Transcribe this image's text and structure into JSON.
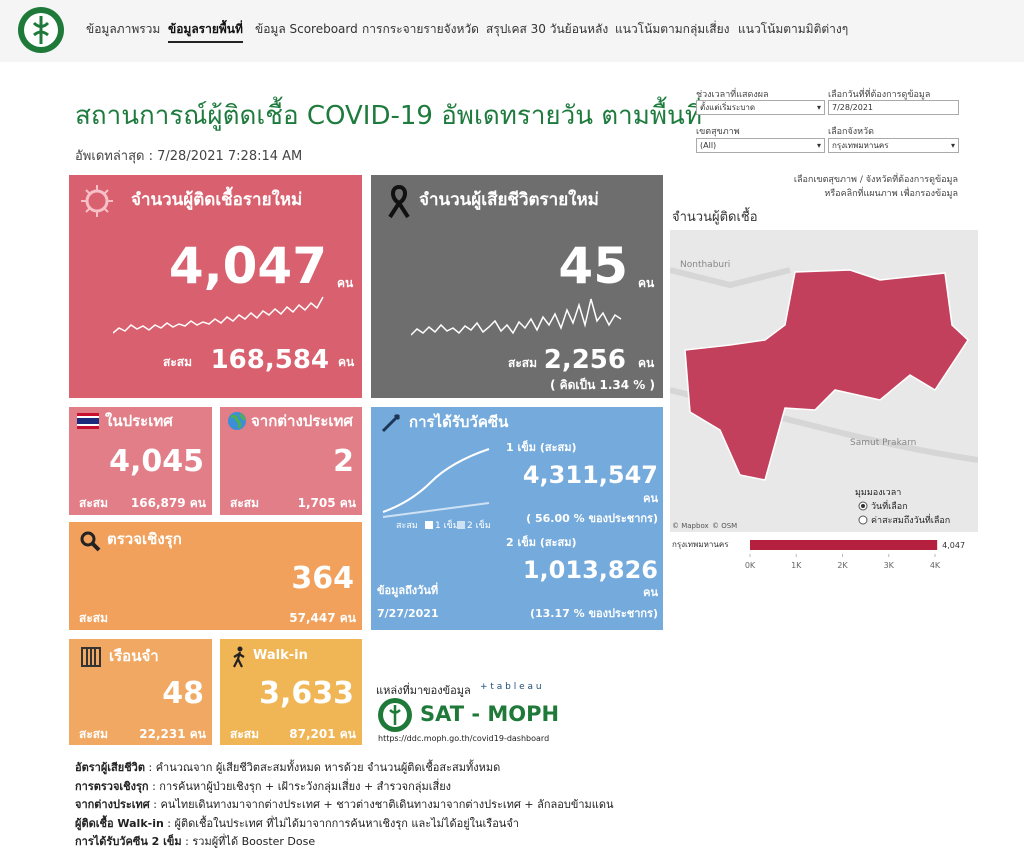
{
  "nav": {
    "items": [
      "ข้อมูลภาพรวม",
      "ข้อมูลรายพื้นที่",
      "ข้อมูล Scoreboard",
      "การกระจายรายจังหวัด",
      "สรุปเคส 30 วันย้อนหลัง",
      "แนวโน้มตามกลุ่มเสี่ยง",
      "แนวโน้มตามมิติต่างๆ"
    ],
    "active": 1
  },
  "header": {
    "title": "สถานการณ์ผู้ติดเชื้อ COVID-19 อัพเดทรายวัน ตามพื้นที่",
    "updated": "อัพเดทล่าสุด : 7/28/2021 7:28:14 AM"
  },
  "cards": {
    "new_cases": {
      "title": "จำนวนผู้ติดเชื้อรายใหม่",
      "value": "4,047",
      "unit": "คน",
      "cumulative_label": "สะสม",
      "cumulative": "168,584",
      "cumulative_unit": "คน"
    },
    "deaths": {
      "title": "จำนวนผู้เสียชีวิตรายใหม่",
      "value": "45",
      "unit": "คน",
      "cumulative_label": "สะสม",
      "cumulative": "2,256",
      "cumulative_unit": "คน",
      "rate": "( คิดเป็น    1.34 % )"
    },
    "domestic": {
      "title": "ในประเทศ",
      "value": "4,045",
      "cumulative_label": "สะสม",
      "cumulative": "166,879 คน"
    },
    "abroad": {
      "title": "จากต่างประเทศ",
      "value": "2",
      "cumulative_label": "สะสม",
      "cumulative": "1,705 คน"
    },
    "active_search": {
      "title": "ตรวจเชิงรุก",
      "value": "364",
      "cumulative_label": "สะสม",
      "cumulative": "57,447 คน"
    },
    "prison": {
      "title": "เรือนจำ",
      "value": "48",
      "cumulative_label": "สะสม",
      "cumulative": "22,231 คน"
    },
    "walk_in": {
      "title": "Walk-in",
      "value": "3,633",
      "cumulative_label": "สะสม",
      "cumulative": "87,201 คน"
    },
    "vaccine": {
      "title": "การได้รับวัคซีน",
      "dose1_label": "1 เข็ม (สะสม)",
      "dose1": "4,311,547",
      "dose1_unit": "คน",
      "dose1_pct": "( 56.00 % ของประชากร)",
      "dose2_label": "2 เข็ม (สะสม)",
      "dose2": "1,013,826",
      "dose2_unit": "คน",
      "dose2_pct": "(13.17 % ของประชากร)",
      "legend_label": "สะสม",
      "legend_1": "1 เข็ม",
      "legend_2": "2 เข็ม",
      "as_of_label": "ข้อมูลถึงวันที่",
      "as_of": "7/27/2021"
    }
  },
  "source": {
    "label": "แหล่งที่มาของข้อมูล",
    "tool": "+ t a b l e a u",
    "name": "SAT - MOPH",
    "url": "https://ddc.moph.go.th/covid19-dashboard"
  },
  "filters": {
    "period_label": "ช่วงเวลาที่แสดงผล",
    "period": "ตั้งแต่เริ่มระบาด",
    "date_label": "เลือกวันที่ที่ต้องการดูข้อมูล",
    "date": "7/28/2021",
    "region_label": "เขตสุขภาพ",
    "region": "(All)",
    "province_label": "เลือกจังหวัด",
    "province": "กรุงเทพมหานคร",
    "hint_1": "เลือกเขตสุขภาพ / จังหวัดที่ต้องการดูข้อมูล",
    "hint_2": "หรือคลิกที่แผนภาพ เพื่อกรองข้อมูล"
  },
  "map": {
    "title": "จำนวนผู้ติดเชื้อ",
    "place_1": "Nonthaburi",
    "place_2": "Samut Prakarn",
    "credit_1": "© Mapbox",
    "credit_2": "© OSM",
    "view_label": "มุมมองเวลา",
    "view_options": [
      "วันที่เลือก",
      "ค่าสะสมถึงวันที่เลือก"
    ]
  },
  "chart_data": {
    "type": "bar",
    "orientation": "horizontal",
    "categories": [
      "กรุงเทพมหานคร"
    ],
    "values": [
      4047
    ],
    "value_labels": [
      "4,047"
    ],
    "color": "#b5203f",
    "xlim": [
      0,
      4800
    ],
    "xticks": [
      {
        "value": 0,
        "label": "0K"
      },
      {
        "value": 1000,
        "label": "1K"
      },
      {
        "value": 2000,
        "label": "2K"
      },
      {
        "value": 3000,
        "label": "3K"
      },
      {
        "value": 4000,
        "label": "4K"
      }
    ]
  },
  "footnotes": [
    {
      "term": "อัตราผู้เสียชีวิต",
      "text": " : คำนวณจาก ผู้เสียชีวิตสะสมทั้งหมด หารด้วย จำนวนผู้ติดเชื้อสะสมทั้งหมด"
    },
    {
      "term": "การตรวจเชิงรุก",
      "text": " :  การค้นหาผู้ป่วยเชิงรุก + เฝ้าระวังกลุ่มเสี่ยง + สำรวจกลุ่มเสี่ยง"
    },
    {
      "term": "จากต่างประเทศ",
      "text": " : คนไทยเดินทางมาจากต่างประเทศ + ชาวต่างชาติเดินทางมาจากต่างประเทศ + ลักลอบข้ามแดน"
    },
    {
      "term": "ผู้ติดเชื้อ Walk-in",
      "text": " : ผู้ติดเชื้อในประเทศ ที่ไม่ได้มาจากการค้นหาเชิงรุก และไม่ได้อยู่ในเรือนจำ"
    },
    {
      "term": "การได้รับวัคซีน 2 เข็ม",
      "text": " : รวมผู้ที่ได้ Booster Dose"
    }
  ]
}
